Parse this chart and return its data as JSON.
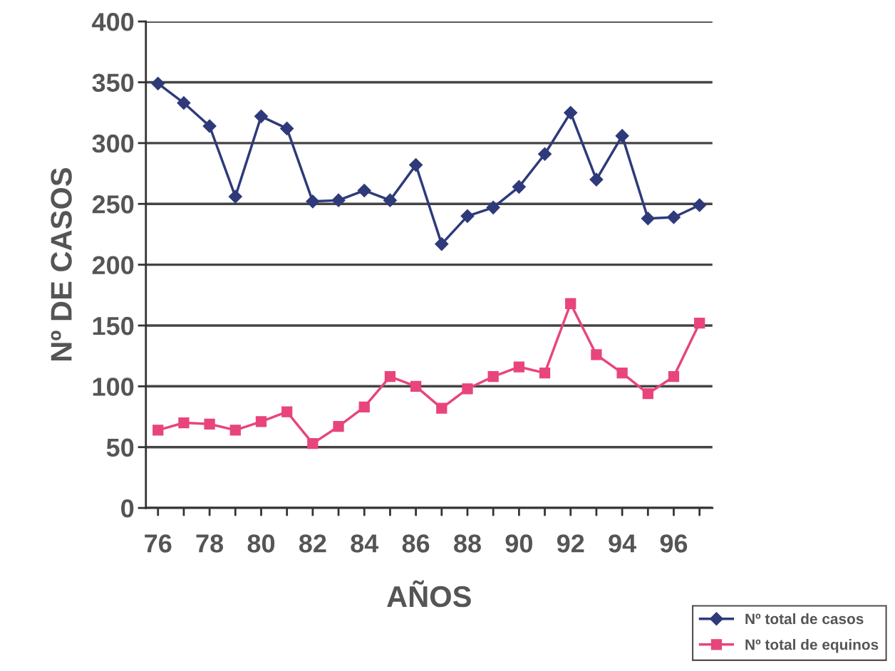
{
  "chart_data": {
    "type": "line",
    "xlabel": "AÑOS",
    "ylabel": "Nº DE CASOS",
    "categories": [
      "76",
      null,
      "78",
      null,
      "80",
      null,
      "82",
      null,
      "84",
      null,
      "86",
      null,
      "88",
      null,
      "90",
      null,
      "92",
      null,
      "94",
      null,
      "96",
      null
    ],
    "series": [
      {
        "name": "Nº total de casos",
        "color": "#2e3a7a",
        "marker": "diamond",
        "values": [
          349,
          333,
          314,
          256,
          322,
          312,
          252,
          253,
          261,
          253,
          282,
          217,
          240,
          247,
          264,
          291,
          325,
          270,
          306,
          238,
          239,
          249
        ]
      },
      {
        "name": "Nº total de equinos",
        "color": "#e8457c",
        "marker": "square",
        "values": [
          64,
          70,
          69,
          64,
          71,
          79,
          53,
          67,
          83,
          108,
          100,
          82,
          98,
          108,
          116,
          111,
          168,
          126,
          111,
          94,
          108,
          152
        ]
      }
    ],
    "ylim": [
      0,
      400
    ],
    "yticks": [
      0,
      50,
      100,
      150,
      200,
      250,
      300,
      350,
      400
    ],
    "grid": "y",
    "legend": "bottom right",
    "line_style": "solid"
  }
}
